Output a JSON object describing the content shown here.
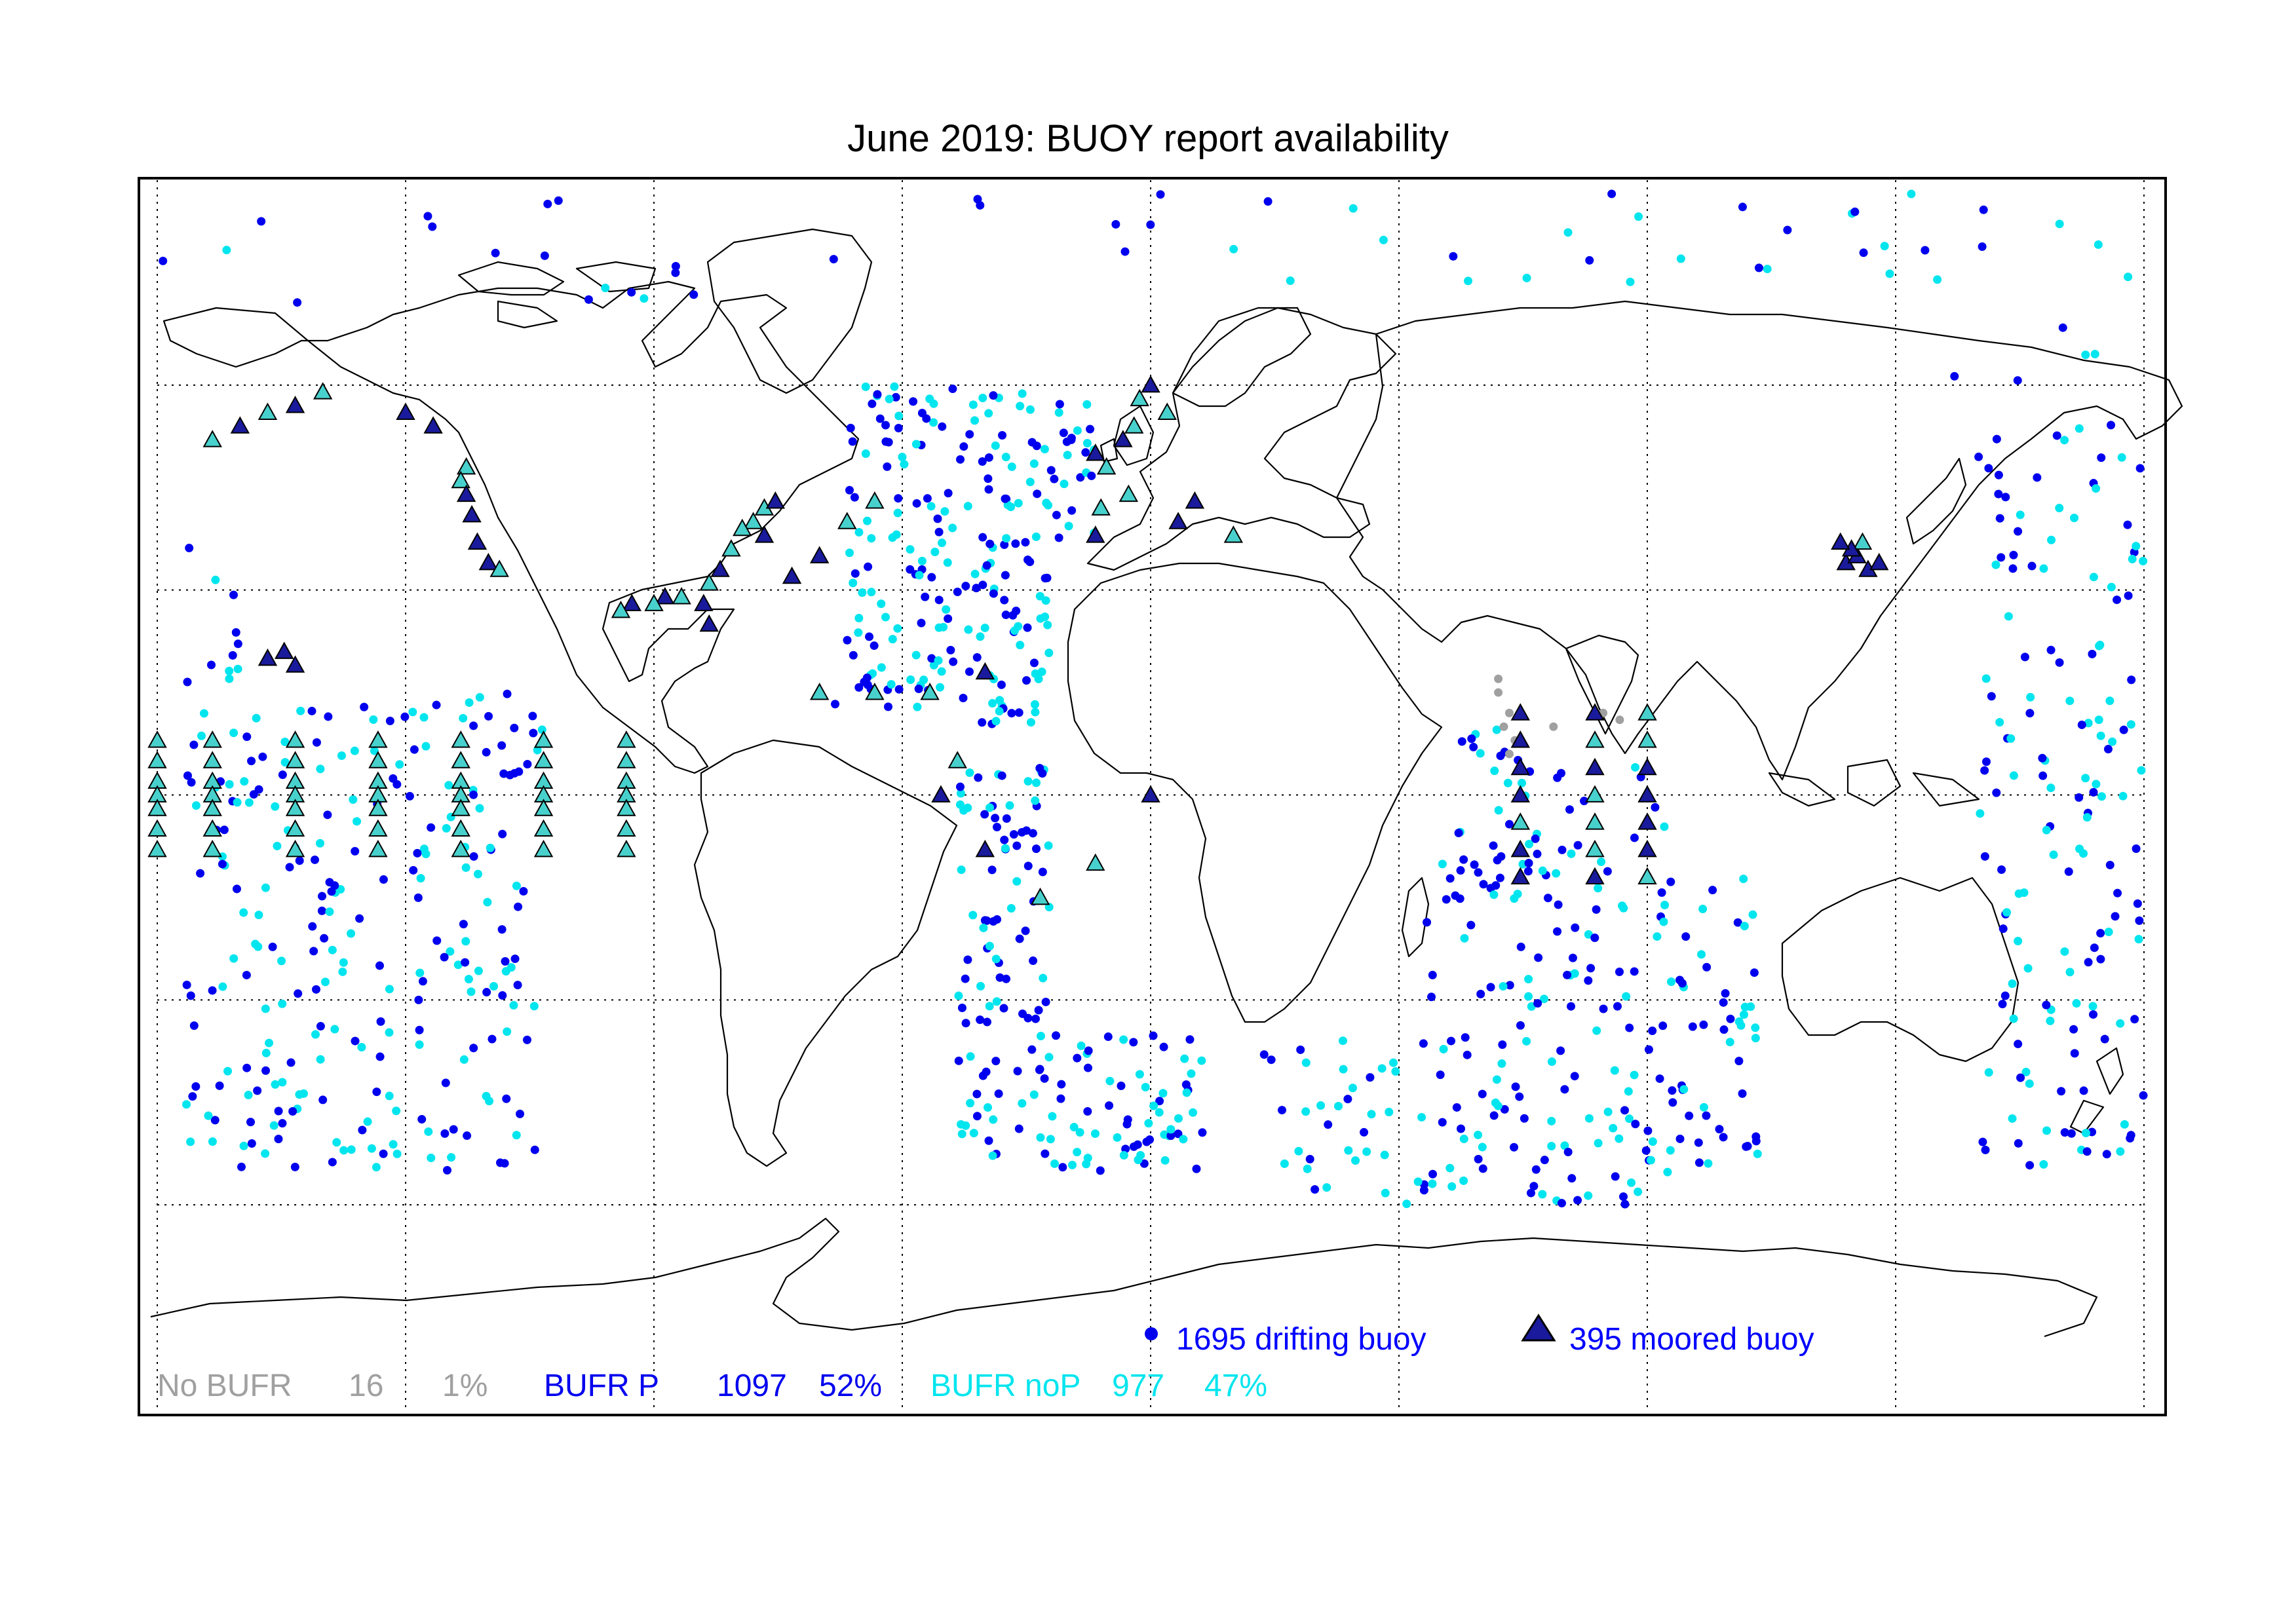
{
  "title": "June 2019: BUOY report availability",
  "colors": {
    "no_bufr": "#a0a0a0",
    "bufr_p": "#0000ee",
    "bufr_nop": "#00e5ee",
    "moored_fill_p": "#1a1a9c",
    "moored_fill_nop": "#48d1cc",
    "coast": "#000000",
    "grid": "#000000"
  },
  "legend": {
    "drifting": "1695 drifting buoy",
    "moored": "395 moored buoy",
    "drifting_symbol": "circle",
    "moored_symbol": "triangle"
  },
  "stats": {
    "no_bufr": {
      "label": "No BUFR",
      "count": "16",
      "percent": "1%"
    },
    "bufr_p": {
      "label": "BUFR P",
      "count": "1097",
      "percent": "52%"
    },
    "bufr_nop": {
      "label": "BUFR noP",
      "count": "977",
      "percent": "47%"
    }
  },
  "map": {
    "projection": "equirectangular",
    "lon_range": [
      -180,
      180
    ],
    "lat_range": [
      -90,
      90
    ],
    "grid_lon_step": 45,
    "grid_lat_step": 30,
    "grid_style": "dotted"
  }
}
